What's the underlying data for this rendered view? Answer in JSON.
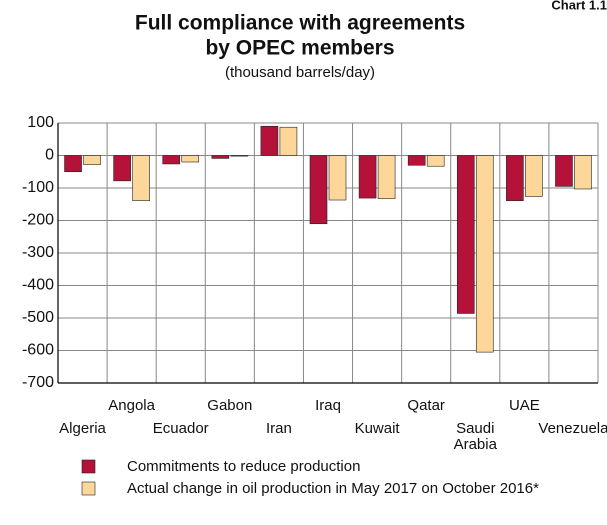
{
  "chart_data": {
    "type": "bar",
    "label": "Chart 1.1",
    "title": [
      "Full compliance with agreements",
      "by OPEC members"
    ],
    "subtitle": "(thousand barrels/day)",
    "categories": [
      "Algeria",
      "Angola",
      "Ecuador",
      "Gabon",
      "Iran",
      "Iraq",
      "Kuwait",
      "Qatar",
      "Saudi Arabia",
      "UAE",
      "Venezuela"
    ],
    "series": [
      {
        "name": "Commitments to reduce production",
        "color": "#b5123a",
        "values": [
          -50,
          -78,
          -26,
          -9,
          90,
          -210,
          -131,
          -30,
          -486,
          -139,
          -95
        ]
      },
      {
        "name": "Actual change in oil production in May 2017 on October 2016*",
        "color": "#fdd799",
        "values": [
          -28,
          -139,
          -20,
          -2,
          87,
          -137,
          -133,
          -33,
          -605,
          -126,
          -103
        ]
      }
    ],
    "ylim": [
      -700,
      100
    ],
    "yticks": [
      100,
      0,
      -100,
      -200,
      -300,
      -400,
      -500,
      -600,
      -700
    ],
    "grid": true
  }
}
